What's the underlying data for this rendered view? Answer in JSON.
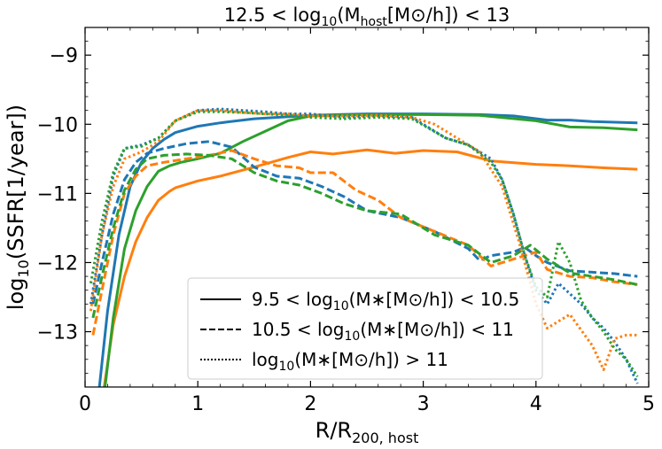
{
  "chart_data": {
    "type": "line",
    "title": {
      "pre": "12.5 < log",
      "sub1": "10",
      "mid": "(M",
      "sub2": "host",
      "post": "[M⊙/h]) < 13"
    },
    "xlabel": {
      "main": "R/R",
      "sub": "200, host"
    },
    "ylabel": {
      "main": "log",
      "sub": "10",
      "post": "(SSFR[1/year])"
    },
    "xlim": [
      0,
      5
    ],
    "ylim": [
      -13.8,
      -8.6
    ],
    "xticks": [
      0,
      1,
      2,
      3,
      4,
      5
    ],
    "xtick_labels": [
      "0",
      "1",
      "2",
      "3",
      "4",
      "5"
    ],
    "yticks": [
      -13,
      -12,
      -11,
      -10,
      -9
    ],
    "ytick_labels": [
      "−13",
      "−12",
      "−11",
      "−10",
      "−9"
    ],
    "colors": {
      "blue": "#1f77b4",
      "orange": "#ff7f0e",
      "green": "#2ca02c"
    },
    "legend": {
      "location": "lower-right",
      "entries": [
        {
          "style": "solid",
          "label": {
            "pre": "9.5 < log",
            "sub": "10",
            "post": "(M∗[M⊙/h]) < 10.5"
          }
        },
        {
          "style": "dashed",
          "label": {
            "pre": "10.5 < log",
            "sub": "10",
            "post": "(M∗[M⊙/h]) < 11"
          }
        },
        {
          "style": "dotted",
          "label": {
            "pre": "log",
            "sub": "10",
            "post": "(M∗[M⊙/h]) > 11"
          }
        }
      ]
    },
    "series": [
      {
        "name": "solid-blue",
        "color": "blue",
        "style": "solid",
        "x": [
          0.12,
          0.2,
          0.3,
          0.4,
          0.5,
          0.6,
          0.7,
          0.8,
          1.0,
          1.2,
          1.5,
          2.0,
          2.5,
          3.0,
          3.5,
          3.8,
          4.1,
          4.3,
          4.5,
          4.7,
          4.9
        ],
        "y": [
          -13.9,
          -12.7,
          -11.6,
          -10.9,
          -10.55,
          -10.35,
          -10.22,
          -10.12,
          -10.03,
          -9.98,
          -9.92,
          -9.87,
          -9.85,
          -9.85,
          -9.86,
          -9.88,
          -9.94,
          -9.94,
          -9.96,
          -9.97,
          -9.98
        ]
      },
      {
        "name": "solid-orange",
        "color": "orange",
        "style": "solid",
        "x": [
          0.16,
          0.25,
          0.35,
          0.45,
          0.55,
          0.65,
          0.75,
          0.8,
          1.0,
          1.2,
          1.5,
          1.8,
          2.0,
          2.2,
          2.5,
          2.75,
          3.0,
          3.3,
          3.6,
          4.0,
          4.3,
          4.6,
          4.9
        ],
        "y": [
          -13.9,
          -12.9,
          -12.2,
          -11.7,
          -11.35,
          -11.1,
          -10.97,
          -10.92,
          -10.82,
          -10.75,
          -10.62,
          -10.48,
          -10.4,
          -10.43,
          -10.37,
          -10.42,
          -10.38,
          -10.4,
          -10.53,
          -10.58,
          -10.6,
          -10.63,
          -10.65
        ]
      },
      {
        "name": "solid-green",
        "color": "green",
        "style": "solid",
        "x": [
          0.17,
          0.25,
          0.35,
          0.45,
          0.55,
          0.65,
          0.75,
          0.85,
          1.0,
          1.2,
          1.4,
          1.6,
          1.8,
          2.0,
          2.5,
          3.0,
          3.5,
          4.0,
          4.3,
          4.6,
          4.9
        ],
        "y": [
          -13.9,
          -12.8,
          -11.8,
          -11.25,
          -10.9,
          -10.68,
          -10.6,
          -10.55,
          -10.5,
          -10.42,
          -10.25,
          -10.1,
          -9.95,
          -9.88,
          -9.86,
          -9.86,
          -9.87,
          -9.95,
          -10.04,
          -10.05,
          -10.08
        ]
      },
      {
        "name": "dashed-blue",
        "color": "blue",
        "style": "dashed",
        "x": [
          0.07,
          0.15,
          0.25,
          0.35,
          0.45,
          0.55,
          0.7,
          0.9,
          1.1,
          1.3,
          1.5,
          1.7,
          1.9,
          2.1,
          2.3,
          2.5,
          2.8,
          3.1,
          3.4,
          3.5,
          3.6,
          3.8,
          3.9,
          4.0,
          4.1,
          4.3,
          4.5,
          4.7,
          4.9
        ],
        "y": [
          -12.6,
          -12.0,
          -11.3,
          -10.8,
          -10.55,
          -10.42,
          -10.35,
          -10.28,
          -10.25,
          -10.33,
          -10.62,
          -10.75,
          -10.78,
          -10.9,
          -11.05,
          -11.25,
          -11.35,
          -11.55,
          -11.8,
          -11.97,
          -11.9,
          -11.85,
          -11.78,
          -11.9,
          -12.0,
          -12.12,
          -12.14,
          -12.16,
          -12.2
        ]
      },
      {
        "name": "dashed-orange",
        "color": "orange",
        "style": "dashed",
        "x": [
          0.07,
          0.15,
          0.25,
          0.35,
          0.45,
          0.55,
          0.7,
          0.9,
          1.1,
          1.3,
          1.5,
          1.7,
          1.9,
          2.0,
          2.2,
          2.4,
          2.6,
          2.8,
          3.1,
          3.4,
          3.6,
          3.8,
          4.0,
          4.1,
          4.3,
          4.5,
          4.7,
          4.9
        ],
        "y": [
          -13.05,
          -12.4,
          -11.6,
          -11.0,
          -10.75,
          -10.6,
          -10.55,
          -10.5,
          -10.45,
          -10.38,
          -10.5,
          -10.6,
          -10.63,
          -10.7,
          -10.7,
          -10.95,
          -11.1,
          -11.35,
          -11.55,
          -11.75,
          -12.05,
          -11.95,
          -11.85,
          -12.1,
          -12.2,
          -12.22,
          -12.28,
          -12.32
        ]
      },
      {
        "name": "dashed-green",
        "color": "green",
        "style": "dashed",
        "x": [
          0.07,
          0.15,
          0.25,
          0.35,
          0.45,
          0.55,
          0.7,
          0.9,
          1.1,
          1.3,
          1.5,
          1.7,
          1.9,
          2.1,
          2.3,
          2.5,
          2.8,
          3.1,
          3.4,
          3.6,
          3.8,
          3.95,
          4.1,
          4.3,
          4.5,
          4.7,
          4.9
        ],
        "y": [
          -12.8,
          -12.2,
          -11.5,
          -10.95,
          -10.65,
          -10.5,
          -10.45,
          -10.43,
          -10.45,
          -10.5,
          -10.7,
          -10.82,
          -10.88,
          -11.0,
          -11.15,
          -11.25,
          -11.3,
          -11.6,
          -11.75,
          -12.0,
          -11.9,
          -11.75,
          -11.95,
          -12.15,
          -12.2,
          -12.25,
          -12.32
        ]
      },
      {
        "name": "dotted-blue",
        "color": "blue",
        "style": "dotted",
        "x": [
          0.05,
          0.15,
          0.25,
          0.35,
          0.5,
          0.65,
          0.8,
          1.0,
          1.2,
          1.4,
          1.6,
          1.8,
          2.0,
          2.3,
          2.6,
          2.9,
          3.2,
          3.4,
          3.6,
          3.7,
          3.8,
          3.9,
          4.0,
          4.1,
          4.2,
          4.3,
          4.4,
          4.5,
          4.6,
          4.7,
          4.8,
          4.9
        ],
        "y": [
          -12.6,
          -11.6,
          -10.75,
          -10.35,
          -10.3,
          -10.2,
          -9.95,
          -9.8,
          -9.78,
          -9.8,
          -9.82,
          -9.85,
          -9.85,
          -9.9,
          -9.88,
          -9.9,
          -10.2,
          -10.3,
          -10.5,
          -10.8,
          -11.3,
          -11.9,
          -12.4,
          -12.6,
          -12.3,
          -12.45,
          -12.6,
          -12.8,
          -12.95,
          -13.15,
          -13.4,
          -13.75
        ]
      },
      {
        "name": "dotted-orange",
        "color": "orange",
        "style": "dotted",
        "x": [
          0.05,
          0.15,
          0.25,
          0.35,
          0.5,
          0.65,
          0.8,
          1.0,
          1.2,
          1.4,
          1.6,
          1.8,
          2.0,
          2.3,
          2.6,
          2.9,
          3.1,
          3.3,
          3.5,
          3.7,
          3.85,
          4.0,
          4.1,
          4.3,
          4.5,
          4.6,
          4.7,
          4.8,
          4.9
        ],
        "y": [
          -12.7,
          -11.6,
          -10.9,
          -10.5,
          -10.4,
          -10.25,
          -9.95,
          -9.8,
          -9.8,
          -9.83,
          -9.85,
          -9.85,
          -9.88,
          -9.88,
          -9.87,
          -9.9,
          -10.0,
          -10.2,
          -10.4,
          -10.9,
          -11.7,
          -12.6,
          -12.95,
          -12.75,
          -13.2,
          -13.55,
          -13.1,
          -13.05,
          -13.05
        ]
      },
      {
        "name": "dotted-green",
        "color": "green",
        "style": "dotted",
        "x": [
          0.05,
          0.15,
          0.25,
          0.35,
          0.5,
          0.65,
          0.8,
          1.0,
          1.2,
          1.4,
          1.6,
          1.8,
          2.0,
          2.3,
          2.6,
          2.9,
          3.2,
          3.4,
          3.6,
          3.7,
          3.8,
          3.9,
          4.0,
          4.1,
          4.2,
          4.3,
          4.4,
          4.5,
          4.6,
          4.7,
          4.8,
          4.9
        ],
        "y": [
          -12.3,
          -11.4,
          -10.7,
          -10.35,
          -10.32,
          -10.2,
          -9.95,
          -9.82,
          -9.82,
          -9.83,
          -9.85,
          -9.87,
          -9.9,
          -9.92,
          -9.9,
          -9.92,
          -10.2,
          -10.3,
          -10.55,
          -10.8,
          -11.3,
          -11.9,
          -12.35,
          -12.5,
          -11.7,
          -12.0,
          -12.55,
          -12.8,
          -13.0,
          -13.25,
          -13.4,
          -13.65
        ]
      }
    ]
  }
}
